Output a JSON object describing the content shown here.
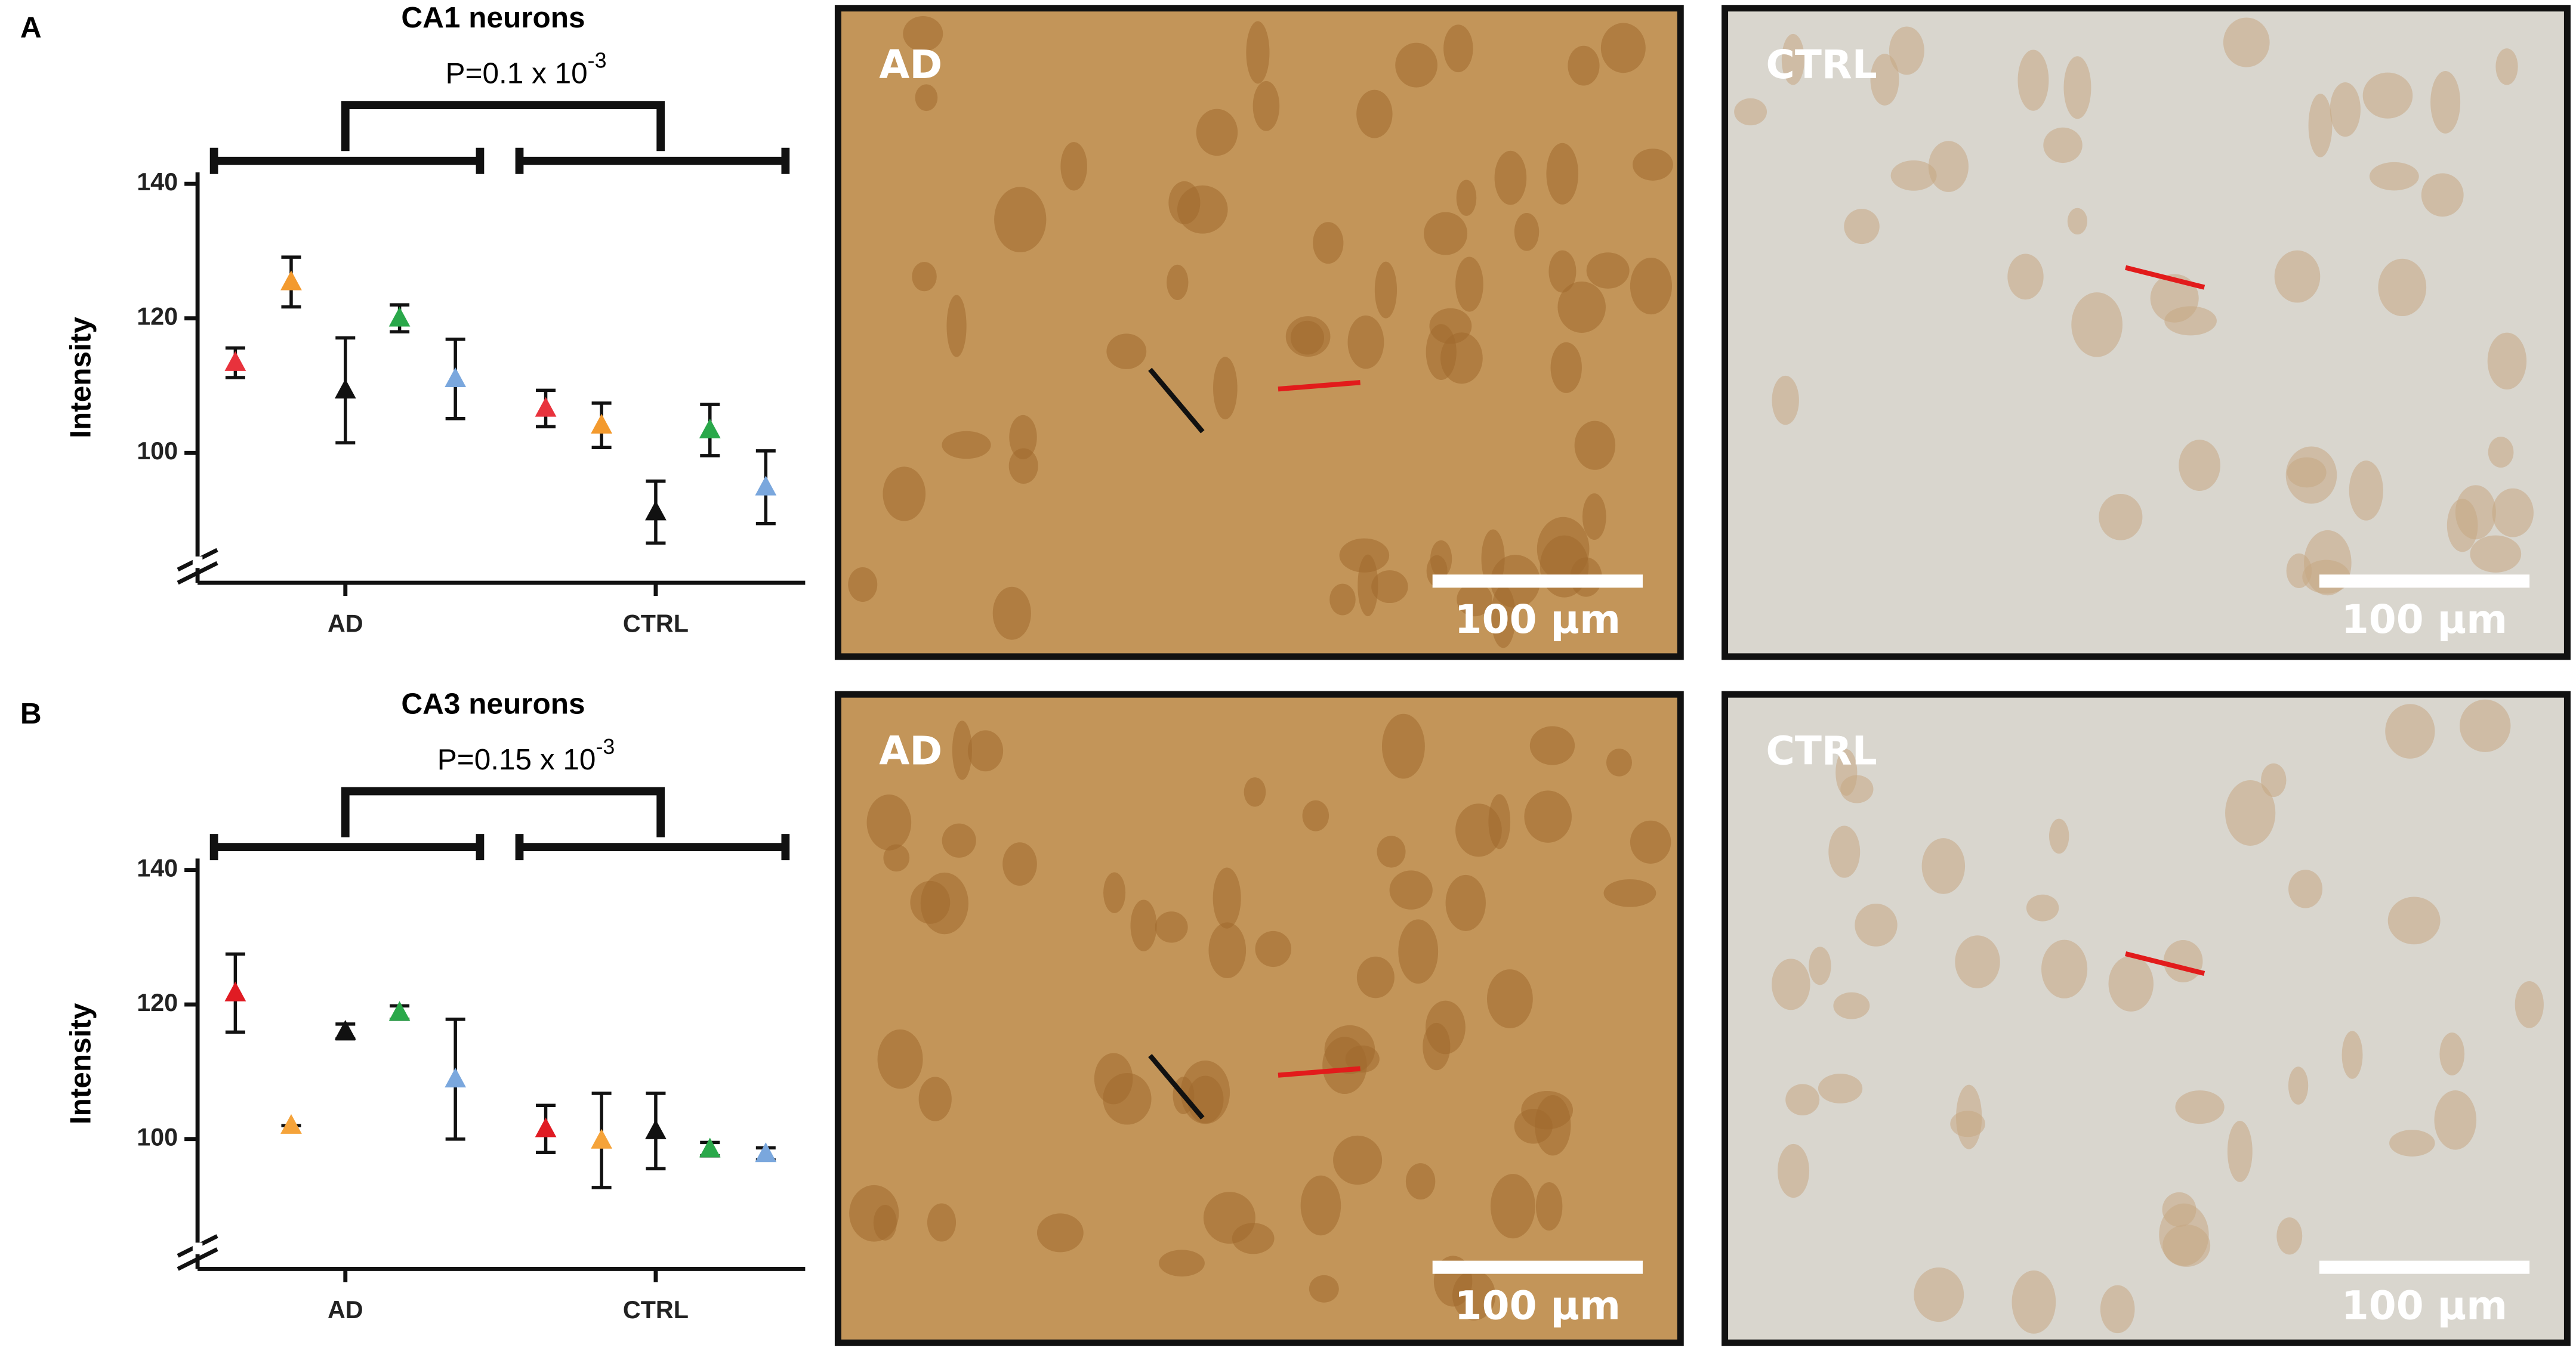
{
  "chart_data": [
    {
      "type": "scatter",
      "title": "CA1 neurons",
      "panel_label": "A",
      "annotation": {
        "text": "P=0.1 x 10",
        "superscript": "-3"
      },
      "y_label": "Intensity",
      "categories": [
        "AD",
        "CTRL"
      ],
      "ylim": [
        80.7,
        141.7
      ],
      "yticks": [
        100,
        120,
        140
      ],
      "series": [
        {
          "color": "#e8323c",
          "values": [
            113.4,
            106.6
          ],
          "errors": [
            2.2,
            2.7
          ]
        },
        {
          "color": "#f39a2e",
          "values": [
            125.4,
            104.1
          ],
          "errors": [
            3.7,
            3.3
          ]
        },
        {
          "color": "#111111",
          "values": [
            109.3,
            91.2
          ],
          "errors": [
            7.8,
            4.6
          ]
        },
        {
          "color": "#2aa84a",
          "values": [
            120,
            103.4
          ],
          "errors": [
            2,
            3.8
          ]
        },
        {
          "color": "#7aa7dd",
          "values": [
            111,
            94.9
          ],
          "errors": [
            5.9,
            5.4
          ]
        }
      ]
    },
    {
      "type": "scatter",
      "title": "CA3 neurons",
      "panel_label": "B",
      "annotation": {
        "text": "P=0.15 x 10",
        "superscript": "-3"
      },
      "y_label": "Intensity",
      "categories": [
        "AD",
        "CTRL"
      ],
      "ylim": [
        80.7,
        141.7
      ],
      "yticks": [
        100,
        120,
        140
      ],
      "series": [
        {
          "color": "#e01b23",
          "values": [
            121.7,
            101.5
          ],
          "errors": [
            5.8,
            3.5
          ]
        },
        {
          "color": "#f5a33a",
          "values": [
            102,
            99.8
          ],
          "errors": [
            0,
            7
          ]
        },
        {
          "color": "#111111",
          "values": [
            116,
            101.2
          ],
          "errors": [
            1.1,
            5.6
          ]
        },
        {
          "color": "#2aa84a",
          "values": [
            118.8,
            98.5
          ],
          "errors": [
            1,
            1
          ]
        },
        {
          "color": "#7aa7dd",
          "values": [
            108.9,
            97.8
          ],
          "errors": [
            8.9,
            0.9
          ]
        }
      ]
    }
  ],
  "micrographs": [
    {
      "label": "AD",
      "scale_bar": "100 µm"
    },
    {
      "label": "CTRL",
      "scale_bar": "100 µm"
    },
    {
      "label": "AD",
      "scale_bar": "100 µm"
    },
    {
      "label": "CTRL",
      "scale_bar": "100 µm"
    }
  ]
}
